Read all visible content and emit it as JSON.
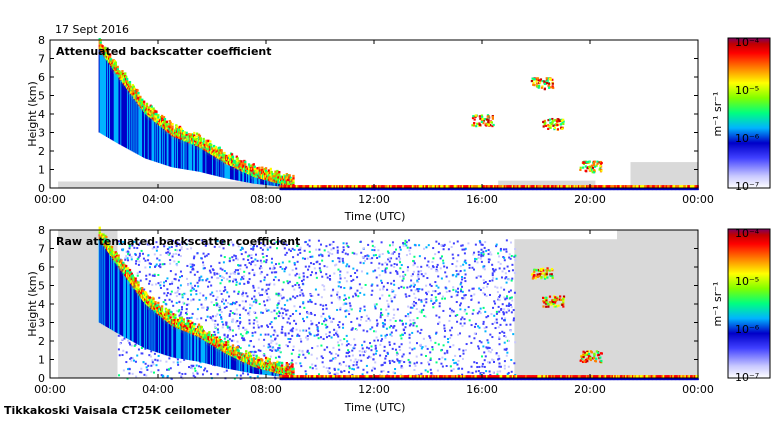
{
  "date": "17 Sept 2016",
  "footer": "Tikkakoski Vaisala CT25K ceilometer",
  "colors": {
    "background_gray": "#d9d9d9",
    "colormap": [
      "#ffffff",
      "#c8c8ff",
      "#4040ff",
      "#0000c8",
      "#00b4ff",
      "#00ff80",
      "#80ff00",
      "#ffff00",
      "#ff8000",
      "#ff0000",
      "#c00000",
      "#800060"
    ]
  },
  "chart_data": [
    {
      "type": "heatmap",
      "title": "Attenuated backscatter coefficient",
      "xlabel": "Time (UTC)",
      "ylabel": "Height (km)",
      "xlim": [
        0,
        24
      ],
      "ylim": [
        0,
        8
      ],
      "x_ticks": [
        "00:00",
        "04:00",
        "08:00",
        "12:00",
        "16:00",
        "20:00",
        "00:00"
      ],
      "y_ticks": [
        "0",
        "1",
        "2",
        "3",
        "4",
        "5",
        "6",
        "7",
        "8"
      ],
      "colorbar": {
        "unit": "m⁻¹ sr⁻¹",
        "labels": [
          "10⁻⁴",
          "10⁻⁵",
          "10⁻⁶",
          "10⁻⁷"
        ],
        "range": [
          1e-07,
          0.0001
        ],
        "scale": "log"
      },
      "features": {
        "descending_layer": [
          [
            1.8,
            7.5
          ],
          [
            2.5,
            6.0
          ],
          [
            3.5,
            4.0
          ],
          [
            4.5,
            2.8
          ],
          [
            5.5,
            2.2
          ],
          [
            6.5,
            1.3
          ],
          [
            7.5,
            0.6
          ],
          [
            8.5,
            0.2
          ],
          [
            9.0,
            0.1
          ]
        ],
        "surface_layer": {
          "from": 8.5,
          "to": 24,
          "height": 0.1
        },
        "clouds": [
          {
            "time": 16.0,
            "height": 3.7
          },
          {
            "time": 18.2,
            "height": 5.7
          },
          {
            "time": 18.6,
            "height": 3.5
          },
          {
            "time": 20.0,
            "height": 1.2
          }
        ]
      }
    },
    {
      "type": "heatmap",
      "title": "Raw attenuated backscatter coefficient",
      "xlabel": "Time (UTC)",
      "ylabel": "Height (km)",
      "xlim": [
        0,
        24
      ],
      "ylim": [
        0,
        8
      ],
      "x_ticks": [
        "00:00",
        "04:00",
        "08:00",
        "12:00",
        "16:00",
        "20:00",
        "00:00"
      ],
      "y_ticks": [
        "0",
        "1",
        "2",
        "3",
        "4",
        "5",
        "6",
        "7",
        "8"
      ],
      "colorbar": {
        "unit": "m⁻¹ sr⁻¹",
        "labels": [
          "10⁻⁴",
          "10⁻⁵",
          "10⁻⁶",
          "10⁻⁷"
        ],
        "range": [
          1e-07,
          0.0001
        ],
        "scale": "log"
      },
      "features": {
        "noise_band": {
          "from": 2.5,
          "to": 17.2,
          "height_max": 7.5
        },
        "descending_layer": [
          [
            1.8,
            7.5
          ],
          [
            2.5,
            6.0
          ],
          [
            3.5,
            4.0
          ],
          [
            4.5,
            2.8
          ],
          [
            5.5,
            2.2
          ],
          [
            6.5,
            1.3
          ],
          [
            7.5,
            0.6
          ],
          [
            8.5,
            0.2
          ],
          [
            9.0,
            0.1
          ]
        ],
        "surface_layer": {
          "from": 8.5,
          "to": 24,
          "height": 0.1
        },
        "clouds": [
          {
            "time": 18.2,
            "height": 5.7
          },
          {
            "time": 18.6,
            "height": 4.2
          },
          {
            "time": 20.0,
            "height": 1.2
          }
        ]
      }
    }
  ]
}
